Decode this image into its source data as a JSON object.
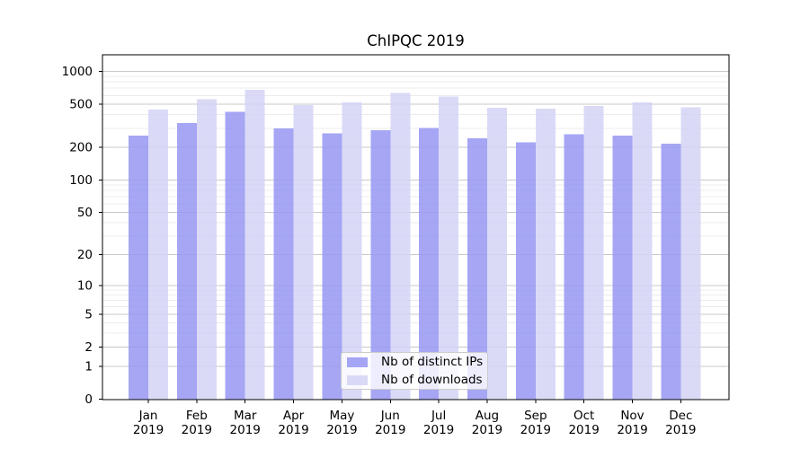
{
  "title": "ChIPQC 2019",
  "chart_data": {
    "type": "bar",
    "title": "ChIPQC 2019",
    "x_tick_year": "2019",
    "categories": [
      "Jan",
      "Feb",
      "Mar",
      "Apr",
      "May",
      "Jun",
      "Jul",
      "Aug",
      "Sep",
      "Oct",
      "Nov",
      "Dec"
    ],
    "series": [
      {
        "name": "Nb of distinct IPs",
        "color": "#9797f3",
        "values": [
          257,
          335,
          427,
          300,
          270,
          287,
          302,
          242,
          223,
          265,
          257,
          216
        ]
      },
      {
        "name": "Nb of downloads",
        "color": "#d3d3f6",
        "values": [
          445,
          555,
          678,
          492,
          518,
          630,
          588,
          462,
          453,
          482,
          520,
          468
        ]
      }
    ],
    "y_axis": {
      "scale": "log10(value+1)",
      "ticks": [
        1000,
        500,
        200,
        100,
        50,
        20,
        10,
        5,
        2,
        1,
        0
      ],
      "minor_gridlines": [
        3,
        4,
        6,
        7,
        8,
        9,
        30,
        40,
        60,
        70,
        80,
        90,
        300,
        400,
        600,
        700,
        800,
        900
      ],
      "range": [
        0,
        1300
      ]
    },
    "grid": true,
    "legend_position": "lower center",
    "colors": {
      "bar_distinct_ips": "#9797f3",
      "bar_downloads": "#d3d3f6",
      "major_grid": "#c9c9c9",
      "minor_grid": "#ececec",
      "axis": "#000000",
      "text": "#000000",
      "legend_border": "#cccccc"
    }
  }
}
